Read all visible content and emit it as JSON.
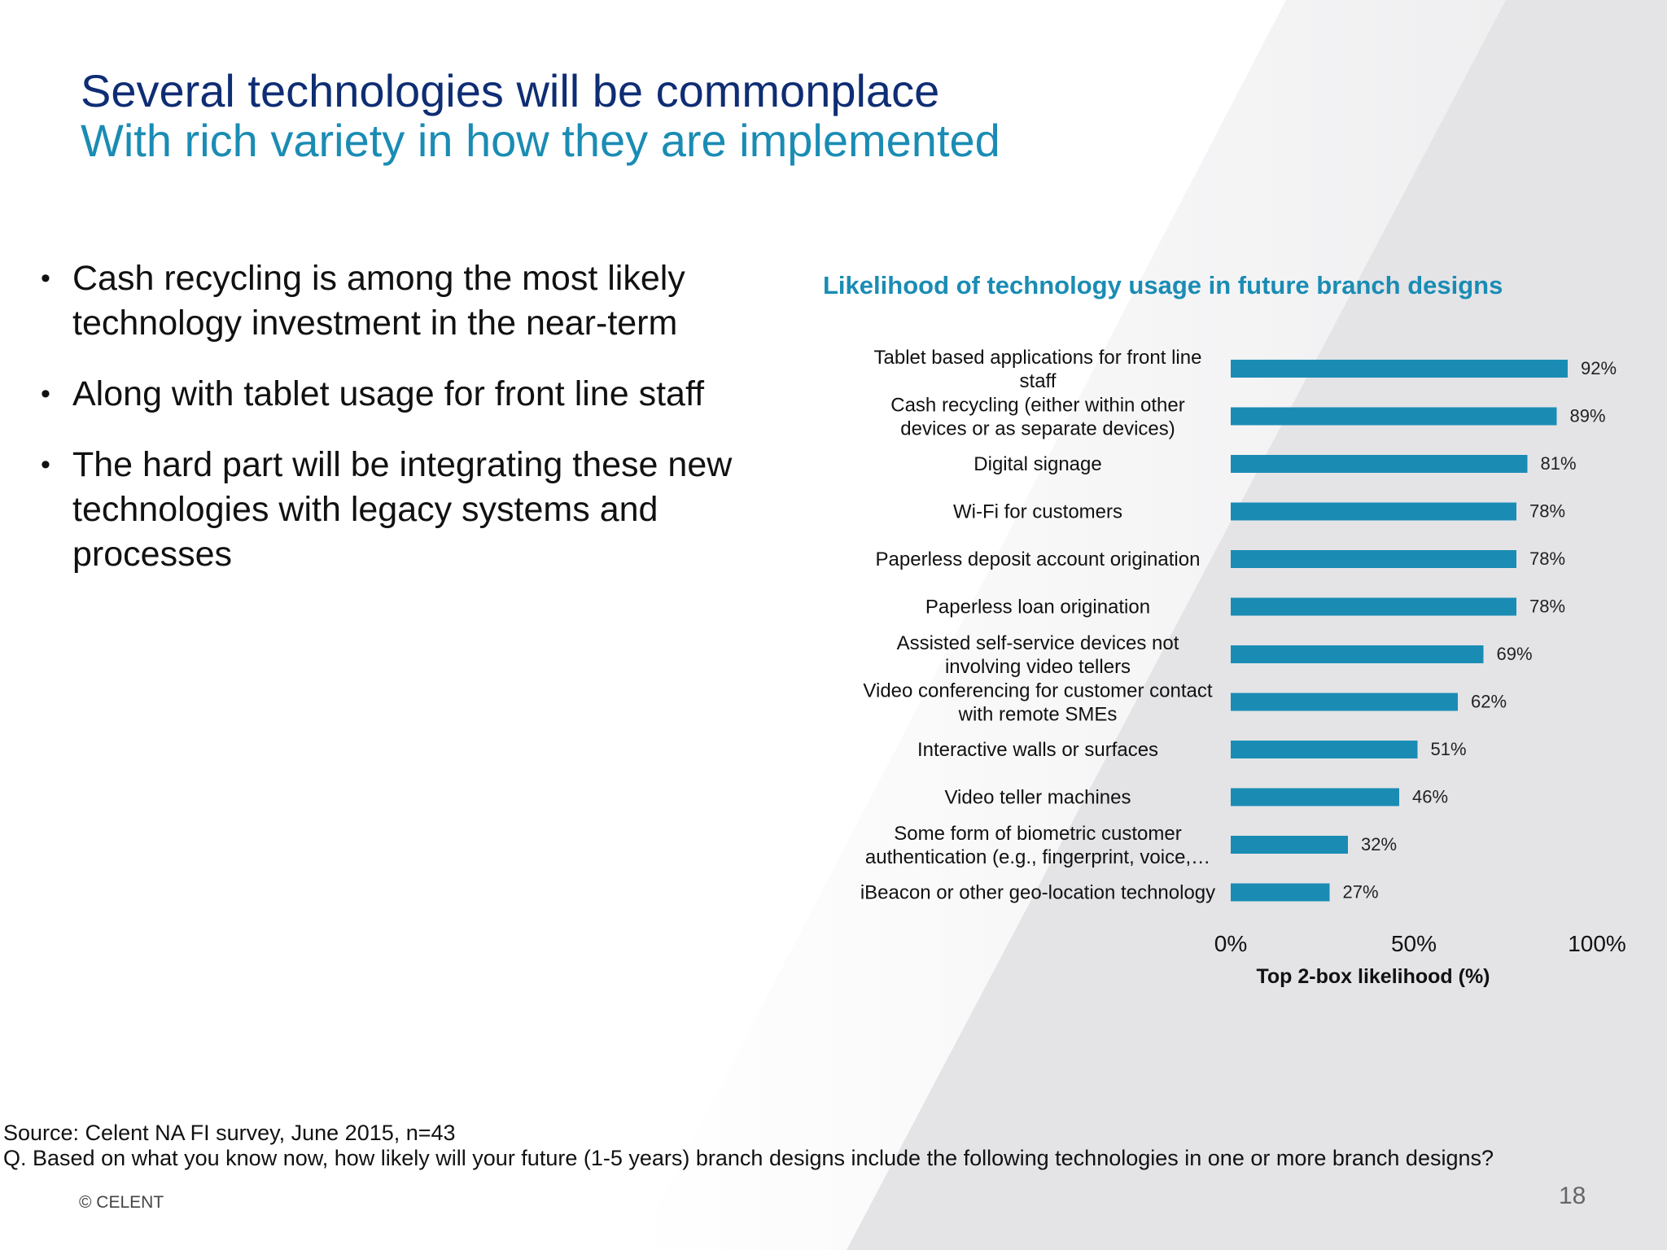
{
  "slide": {
    "title": "Several technologies will be commonplace",
    "subtitle": "With rich variety in how they are implemented",
    "bullets": [
      "Cash recycling is among the most likely technology investment in the near-term",
      "Along with tablet usage for front line staff",
      "The hard part will be integrating these new technologies with legacy systems and processes"
    ],
    "bullet_glyph": "•",
    "source": "Source: Celent NA FI survey, June 2015, n=43",
    "question": "Q. Based on what you know now, how likely will your future (1-5 years) branch designs include the following technologies in one or more branch designs?",
    "copyright": "© CELENT",
    "page_number": "18"
  },
  "colors": {
    "title": "#0f2d74",
    "accent": "#1a8cb4",
    "bar": "#1a8cb4",
    "text": "#111111"
  },
  "chart_data": {
    "type": "bar",
    "orientation": "horizontal",
    "title": "Likelihood of technology usage in future branch designs",
    "xlabel": "Top 2-box likelihood (%)",
    "ylabel": "",
    "xlim": [
      0,
      100
    ],
    "x_ticks": [
      "0%",
      "50%",
      "100%"
    ],
    "grid": false,
    "categories": [
      [
        "Tablet based applications for front line",
        "staff"
      ],
      [
        "Cash recycling (either within other",
        "devices or as separate devices)"
      ],
      [
        "Digital signage"
      ],
      [
        "Wi-Fi for customers"
      ],
      [
        "Paperless deposit account origination"
      ],
      [
        "Paperless loan origination"
      ],
      [
        "Assisted self-service devices not",
        "involving video tellers"
      ],
      [
        "Video conferencing for customer contact",
        "with remote SMEs"
      ],
      [
        "Interactive walls or surfaces"
      ],
      [
        "Video teller machines"
      ],
      [
        "Some form of biometric customer",
        "authentication (e.g., fingerprint, voice,…"
      ],
      [
        "iBeacon or other geo-location technology"
      ]
    ],
    "values": [
      92,
      89,
      81,
      78,
      78,
      78,
      69,
      62,
      51,
      46,
      32,
      27
    ],
    "data_labels": [
      "92%",
      "89%",
      "81%",
      "78%",
      "78%",
      "78%",
      "69%",
      "62%",
      "51%",
      "46%",
      "32%",
      "27%"
    ]
  }
}
